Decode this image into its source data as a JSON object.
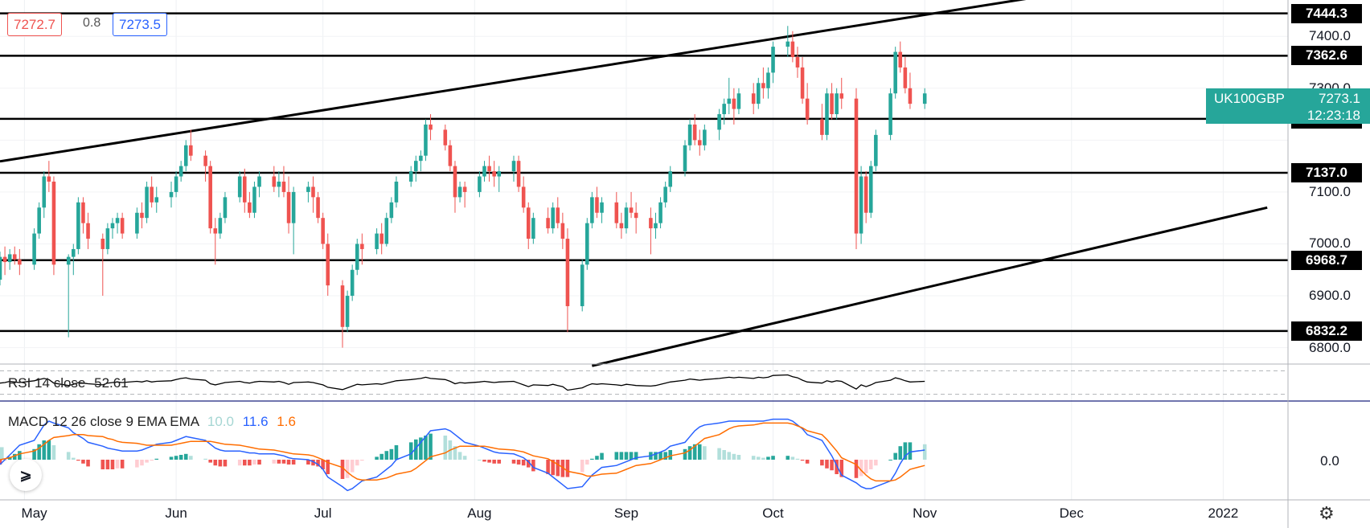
{
  "header": {
    "bid": "7272.7",
    "spread": "0.8",
    "ask": "7273.5"
  },
  "symbol": {
    "name": "UK100GBP",
    "last_price": "7273.1",
    "countdown": "12:23:18",
    "color": "#26a69a"
  },
  "price_axis": {
    "ticks": [
      "7400.0",
      "7300.0",
      "7100.0",
      "7000.0",
      "6900.0",
      "6800.0"
    ]
  },
  "horizontal_levels": [
    "7444.3",
    "7362.6",
    "7241.0",
    "7137.0",
    "6968.7",
    "6832.2"
  ],
  "time_axis": {
    "ticks": [
      "May",
      "Jun",
      "Jul",
      "Aug",
      "Sep",
      "Oct",
      "Nov",
      "Dec",
      "2022"
    ]
  },
  "rsi": {
    "label": "RSI 14 close",
    "value": "52.61"
  },
  "macd": {
    "label": "MACD 12 26 close 9 EMA EMA",
    "histogram_value": "10.0",
    "macd_value": "11.6",
    "signal_value": "1.6",
    "axis_tick": "0.0",
    "colors": {
      "histogram": "#a5d6d3",
      "macd": "#2962ff",
      "signal": "#ff6d00"
    }
  },
  "colors": {
    "up": "#26a69a",
    "down": "#ef5350"
  },
  "icons": {
    "logo": "tradingview-logo-icon",
    "settings": "settings-gear-icon"
  },
  "chart_data": {
    "type": "candlestick",
    "x_start": "2021-04-26",
    "ylim": [
      6770,
      7470
    ],
    "levels": [
      7444.3,
      7362.6,
      7241.0,
      7137.0,
      6968.7,
      6832.2
    ],
    "trend_lines": [
      {
        "from": [
          "2021-04-26",
          7159
        ],
        "to": [
          "2021-12-31",
          7531
        ]
      },
      {
        "from": [
          "2021-08-25",
          6765
        ],
        "to": [
          "2022-01-10",
          7070
        ]
      }
    ],
    "ohlc": [
      [
        6931,
        6985,
        6920,
        6975
      ],
      [
        6975,
        6995,
        6940,
        6965
      ],
      [
        6965,
        6990,
        6950,
        6980
      ],
      [
        6980,
        6995,
        6960,
        6970
      ],
      [
        6970,
        6990,
        6940,
        6960
      ],
      [
        6960,
        7030,
        6950,
        7020
      ],
      [
        7020,
        7080,
        7010,
        7070
      ],
      [
        7070,
        7140,
        7050,
        7130
      ],
      [
        7130,
        7160,
        7100,
        7120
      ],
      [
        7120,
        7130,
        6940,
        6960
      ],
      [
        6960,
        6980,
        6820,
        6975
      ],
      [
        6975,
        7000,
        6940,
        6990
      ],
      [
        6990,
        7090,
        6980,
        7080
      ],
      [
        7080,
        7090,
        7020,
        7040
      ],
      [
        7040,
        7060,
        6990,
        7010
      ],
      [
        7010,
        7020,
        6900,
        6990
      ],
      [
        6990,
        7040,
        6980,
        7030
      ],
      [
        7030,
        7050,
        7010,
        7040
      ],
      [
        7040,
        7060,
        7020,
        7050
      ],
      [
        7050,
        7060,
        7010,
        7020
      ],
      [
        7020,
        7070,
        7010,
        7060
      ],
      [
        7060,
        7080,
        7030,
        7050
      ],
      [
        7050,
        7120,
        7040,
        7110
      ],
      [
        7110,
        7130,
        7070,
        7080
      ],
      [
        7080,
        7110,
        7060,
        7090
      ],
      [
        7090,
        7120,
        7070,
        7100
      ],
      [
        7100,
        7140,
        7090,
        7130
      ],
      [
        7130,
        7160,
        7120,
        7150
      ],
      [
        7150,
        7200,
        7140,
        7190
      ],
      [
        7190,
        7220,
        7160,
        7170
      ],
      [
        7170,
        7180,
        7120,
        7150
      ],
      [
        7150,
        7160,
        7020,
        7030
      ],
      [
        7030,
        7050,
        6960,
        7020
      ],
      [
        7020,
        7060,
        7010,
        7050
      ],
      [
        7050,
        7100,
        7040,
        7090
      ],
      [
        7090,
        7140,
        7080,
        7130
      ],
      [
        7130,
        7145,
        7060,
        7080
      ],
      [
        7080,
        7100,
        7050,
        7060
      ],
      [
        7060,
        7120,
        7050,
        7110
      ],
      [
        7110,
        7140,
        7090,
        7130
      ],
      [
        7130,
        7150,
        7100,
        7110
      ],
      [
        7110,
        7140,
        7090,
        7120
      ],
      [
        7120,
        7150,
        7090,
        7100
      ],
      [
        7100,
        7130,
        7020,
        7040
      ],
      [
        7040,
        7110,
        6980,
        7100
      ],
      [
        7100,
        7120,
        7080,
        7110
      ],
      [
        7110,
        7130,
        7060,
        7090
      ],
      [
        7090,
        7100,
        7040,
        7050
      ],
      [
        7050,
        7060,
        6990,
        7000
      ],
      [
        7000,
        7020,
        6900,
        6920
      ],
      [
        6920,
        6930,
        6800,
        6840
      ],
      [
        6840,
        6910,
        6830,
        6900
      ],
      [
        6900,
        6960,
        6890,
        6950
      ],
      [
        6950,
        7010,
        6940,
        7000
      ],
      [
        7000,
        7020,
        6960,
        6990
      ],
      [
        6990,
        7030,
        6980,
        7020
      ],
      [
        7020,
        7040,
        6980,
        7000
      ],
      [
        7000,
        7060,
        6995,
        7050
      ],
      [
        7050,
        7090,
        7040,
        7080
      ],
      [
        7080,
        7130,
        7070,
        7120
      ],
      [
        7120,
        7150,
        7110,
        7140
      ],
      [
        7140,
        7170,
        7120,
        7160
      ],
      [
        7160,
        7180,
        7140,
        7170
      ],
      [
        7170,
        7240,
        7160,
        7230
      ],
      [
        7230,
        7250,
        7200,
        7220
      ],
      [
        7220,
        7230,
        7180,
        7190
      ],
      [
        7190,
        7200,
        7140,
        7150
      ],
      [
        7150,
        7160,
        7060,
        7090
      ],
      [
        7090,
        7120,
        7080,
        7110
      ],
      [
        7110,
        7120,
        7070,
        7100
      ],
      [
        7100,
        7140,
        7090,
        7130
      ],
      [
        7130,
        7160,
        7120,
        7150
      ],
      [
        7150,
        7170,
        7120,
        7140
      ],
      [
        7140,
        7160,
        7110,
        7130
      ],
      [
        7130,
        7150,
        7100,
        7140
      ],
      [
        7140,
        7170,
        7120,
        7160
      ],
      [
        7160,
        7170,
        7100,
        7110
      ],
      [
        7110,
        7130,
        7060,
        7070
      ],
      [
        7070,
        7080,
        6990,
        7010
      ],
      [
        7010,
        7060,
        7000,
        7050
      ],
      [
        7050,
        7070,
        7020,
        7030
      ],
      [
        7030,
        7080,
        7020,
        7070
      ],
      [
        7070,
        7090,
        7030,
        7040
      ],
      [
        7040,
        7060,
        6990,
        7010
      ],
      [
        7010,
        7030,
        6830,
        6880
      ],
      [
        6880,
        6970,
        6870,
        6960
      ],
      [
        6960,
        7050,
        6950,
        7040
      ],
      [
        7040,
        7100,
        7030,
        7090
      ],
      [
        7090,
        7110,
        7050,
        7060
      ],
      [
        7060,
        7090,
        7040,
        7080
      ],
      [
        7080,
        7100,
        7030,
        7040
      ],
      [
        7040,
        7060,
        7010,
        7030
      ],
      [
        7030,
        7080,
        7020,
        7070
      ],
      [
        7070,
        7100,
        7050,
        7060
      ],
      [
        7060,
        7080,
        7020,
        7050
      ],
      [
        7050,
        7070,
        6980,
        7030
      ],
      [
        7030,
        7060,
        7010,
        7040
      ],
      [
        7040,
        7090,
        7030,
        7080
      ],
      [
        7080,
        7120,
        7070,
        7110
      ],
      [
        7110,
        7150,
        7100,
        7140
      ],
      [
        7140,
        7200,
        7130,
        7190
      ],
      [
        7190,
        7240,
        7180,
        7230
      ],
      [
        7230,
        7250,
        7190,
        7200
      ],
      [
        7200,
        7220,
        7170,
        7190
      ],
      [
        7190,
        7230,
        7180,
        7220
      ],
      [
        7220,
        7260,
        7200,
        7250
      ],
      [
        7250,
        7280,
        7230,
        7270
      ],
      [
        7270,
        7320,
        7250,
        7280
      ],
      [
        7280,
        7300,
        7230,
        7260
      ],
      [
        7260,
        7300,
        7250,
        7290
      ],
      [
        7290,
        7310,
        7250,
        7270
      ],
      [
        7270,
        7320,
        7260,
        7310
      ],
      [
        7310,
        7340,
        7280,
        7300
      ],
      [
        7300,
        7340,
        7280,
        7330
      ],
      [
        7330,
        7390,
        7310,
        7380
      ],
      [
        7380,
        7420,
        7360,
        7390
      ],
      [
        7390,
        7410,
        7350,
        7360
      ],
      [
        7360,
        7380,
        7320,
        7340
      ],
      [
        7340,
        7360,
        7270,
        7280
      ],
      [
        7280,
        7310,
        7230,
        7240
      ],
      [
        7240,
        7270,
        7200,
        7210
      ],
      [
        7210,
        7300,
        7200,
        7290
      ],
      [
        7290,
        7310,
        7240,
        7250
      ],
      [
        7250,
        7300,
        7240,
        7290
      ],
      [
        7290,
        7320,
        7260,
        7280
      ],
      [
        7280,
        7300,
        6990,
        7020
      ],
      [
        7020,
        7150,
        7000,
        7130
      ],
      [
        7130,
        7140,
        7040,
        7060
      ],
      [
        7060,
        7160,
        7050,
        7150
      ],
      [
        7150,
        7220,
        7140,
        7210
      ],
      [
        7210,
        7300,
        7200,
        7290
      ],
      [
        7290,
        7380,
        7280,
        7370
      ],
      [
        7370,
        7390,
        7330,
        7340
      ],
      [
        7340,
        7360,
        7290,
        7300
      ],
      [
        7300,
        7330,
        7260,
        7270
      ],
      [
        7270,
        7300,
        7260,
        7290
      ]
    ],
    "rsi": [
      49,
      50,
      52,
      51,
      50,
      53,
      55,
      57,
      55,
      49,
      45,
      47,
      50,
      49,
      48,
      46,
      49,
      50,
      51,
      50,
      52,
      51,
      53,
      51,
      52,
      53,
      55,
      57,
      58,
      56,
      54,
      48,
      46,
      48,
      50,
      52,
      50,
      49,
      51,
      52,
      51,
      52,
      50,
      47,
      50,
      51,
      50,
      48,
      46,
      42,
      38,
      41,
      44,
      47,
      46,
      48,
      47,
      49,
      51,
      53,
      55,
      56,
      57,
      59,
      57,
      55,
      52,
      48,
      50,
      49,
      51,
      52,
      51,
      50,
      51,
      52,
      49,
      46,
      43,
      46,
      45,
      47,
      45,
      43,
      37,
      41,
      45,
      48,
      47,
      48,
      46,
      45,
      47,
      46,
      45,
      44,
      45,
      47,
      49,
      51,
      54,
      56,
      55,
      54,
      55,
      57,
      58,
      59,
      58,
      59,
      57,
      59,
      58,
      59,
      62,
      63,
      60,
      58,
      54,
      51,
      49,
      53,
      51,
      53,
      52,
      39,
      46,
      43,
      46,
      50,
      54,
      58,
      56,
      53,
      51,
      52
    ],
    "macd_line": [
      -5,
      0,
      5,
      10,
      15,
      20,
      28,
      36,
      40,
      38,
      33,
      28,
      25,
      22,
      18,
      14,
      12,
      11,
      10,
      9,
      9,
      10,
      12,
      14,
      16,
      18,
      20,
      22,
      24,
      23,
      20,
      16,
      12,
      10,
      9,
      9,
      8,
      7,
      7,
      6,
      6,
      5,
      4,
      2,
      1,
      0,
      -2,
      -5,
      -10,
      -18,
      -28,
      -32,
      -30,
      -26,
      -22,
      -18,
      -14,
      -10,
      -6,
      0,
      6,
      12,
      18,
      24,
      30,
      32,
      30,
      26,
      22,
      18,
      14,
      12,
      10,
      8,
      7,
      6,
      4,
      2,
      -2,
      -8,
      -14,
      -18,
      -22,
      -26,
      -30,
      -28,
      -22,
      -16,
      -12,
      -8,
      -6,
      -4,
      -2,
      0,
      2,
      4,
      6,
      8,
      10,
      14,
      18,
      24,
      30,
      34,
      36,
      38,
      39,
      40,
      40,
      40,
      40,
      40,
      40,
      41,
      42,
      42,
      40,
      36,
      32,
      26,
      20,
      12,
      4,
      -6,
      -16,
      -24,
      -28,
      -30,
      -30,
      -28,
      -22,
      -14,
      -4,
      4,
      8,
      10,
      11,
      11.6
    ],
    "signal_line": [
      0,
      1,
      2,
      4,
      6,
      9,
      12,
      16,
      20,
      23,
      25,
      26,
      26,
      26,
      25,
      24,
      22,
      21,
      19,
      18,
      17,
      16,
      15,
      15,
      15,
      15,
      16,
      17,
      18,
      19,
      19,
      19,
      18,
      17,
      16,
      15,
      14,
      13,
      12,
      11,
      10,
      9,
      8,
      7,
      6,
      5,
      4,
      2,
      0,
      -3,
      -8,
      -13,
      -17,
      -20,
      -21,
      -21,
      -20,
      -19,
      -17,
      -15,
      -12,
      -9,
      -5,
      -1,
      3,
      7,
      10,
      12,
      14,
      14,
      14,
      14,
      13,
      12,
      11,
      10,
      9,
      8,
      6,
      4,
      1,
      -2,
      -5,
      -8,
      -12,
      -15,
      -17,
      -17,
      -16,
      -15,
      -14,
      -12,
      -10,
      -8,
      -6,
      -4,
      -2,
      0,
      2,
      4,
      7,
      10,
      14,
      18,
      22,
      26,
      29,
      32,
      34,
      35,
      36,
      37,
      38,
      38,
      38,
      38,
      37,
      35,
      33,
      30,
      26,
      21,
      15,
      9,
      2,
      -5,
      -11,
      -16,
      -20,
      -22,
      -22,
      -21,
      -18,
      -14,
      -10,
      -6,
      -2,
      1.6
    ]
  }
}
